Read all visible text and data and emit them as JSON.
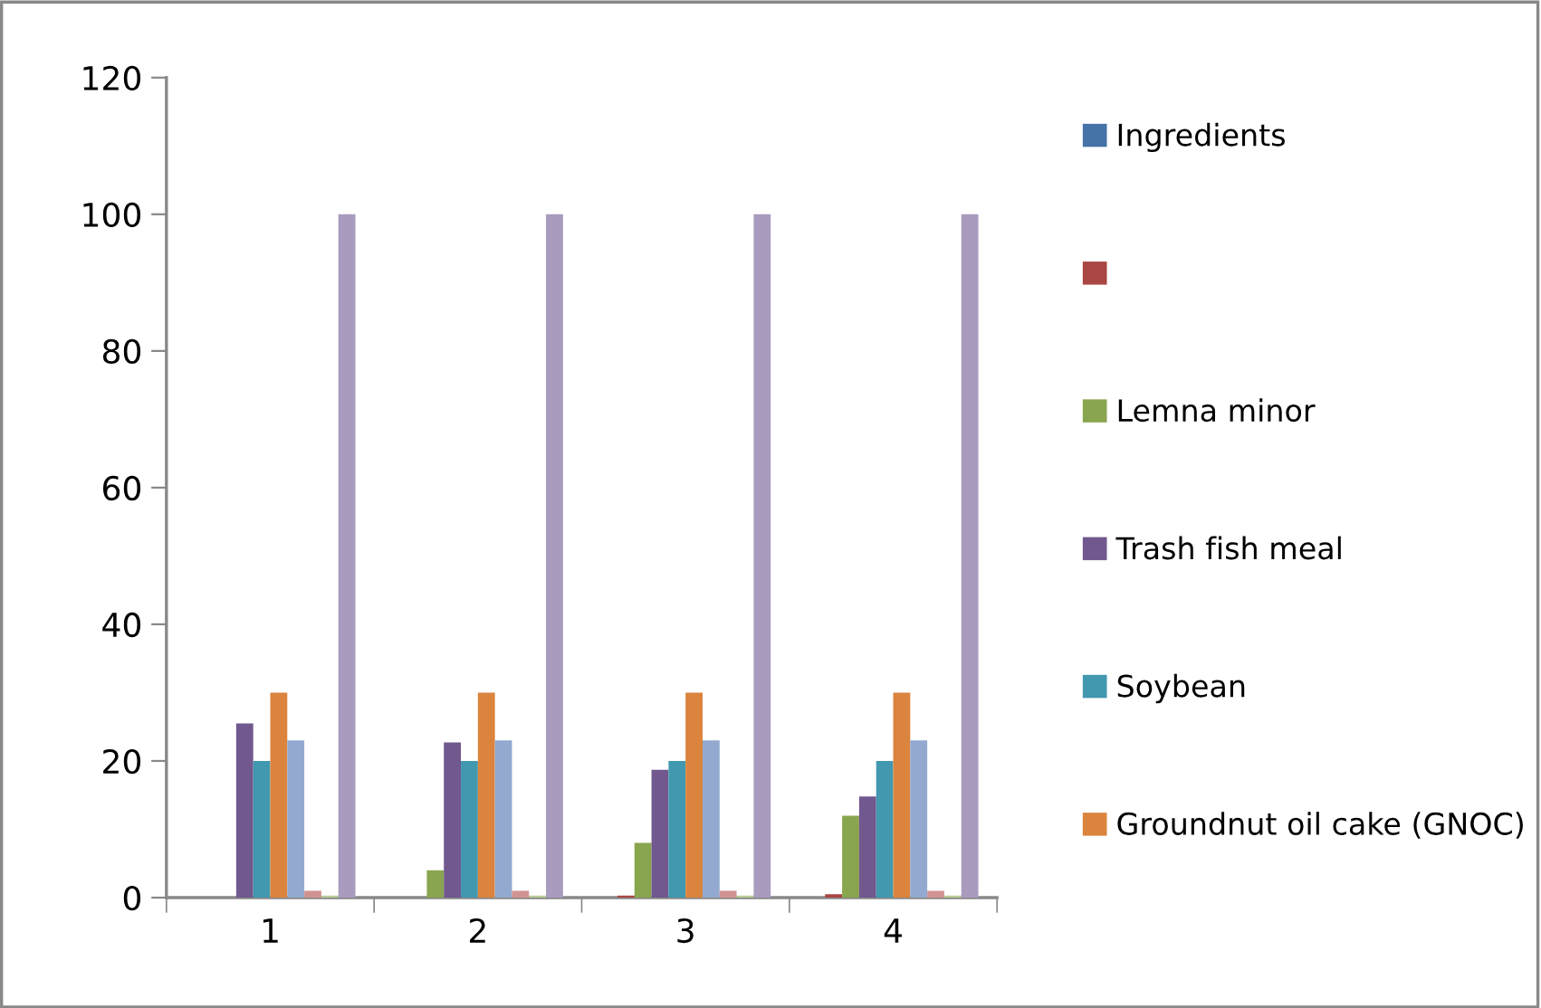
{
  "chart_data": {
    "type": "bar",
    "categories": [
      "1",
      "2",
      "3",
      "4"
    ],
    "series": [
      {
        "name": "Ingredients",
        "color": "#4572a7",
        "values": [
          0,
          0,
          0,
          0
        ]
      },
      {
        "color": "#aa4643",
        "values": [
          0,
          0,
          0.3,
          0.5
        ]
      },
      {
        "name": "Lemna minor",
        "color": "#89a54e",
        "values": [
          0,
          4,
          8,
          12
        ]
      },
      {
        "name": "Trash fish meal",
        "color": "#71588f",
        "values": [
          25.5,
          22.7,
          18.7,
          14.8
        ]
      },
      {
        "name": "Soybean",
        "color": "#4198af",
        "values": [
          20,
          20,
          20,
          20
        ]
      },
      {
        "name": "Groundnut oil cake (GNOC)",
        "color": "#db843d",
        "values": [
          30,
          30,
          30,
          30
        ]
      },
      {
        "color": "#93a9cf",
        "values": [
          23,
          23,
          23,
          23
        ]
      },
      {
        "color": "#d19392",
        "values": [
          1,
          1,
          1,
          1
        ]
      },
      {
        "color": "#b9cd96",
        "values": [
          0.3,
          0.3,
          0.3,
          0.3
        ]
      },
      {
        "color": "#a99bbd",
        "values": [
          100,
          100,
          100,
          100
        ]
      }
    ],
    "ylim": [
      0,
      120
    ],
    "yticks": [
      0,
      20,
      40,
      60,
      80,
      100,
      120
    ],
    "grid": false,
    "legend": "right"
  }
}
